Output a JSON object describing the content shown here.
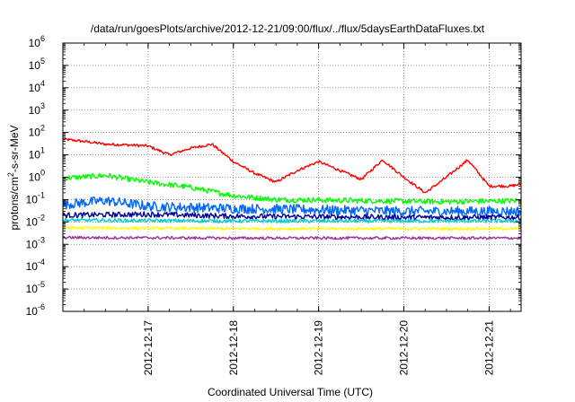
{
  "chart_data": {
    "type": "line",
    "title": "/data/run/goesPlots/archive/2012-12-21/09:00/flux/../flux/5daysEarthDataFluxes.txt",
    "xlabel": "Coordinated Universal Time (UTC)",
    "ylabel_base": "protons/cm",
    "ylabel_sup": "2",
    "ylabel_rest": "-s-sr-MeV",
    "yscale": "log",
    "ylim_exp": [
      -6,
      6
    ],
    "y_ticks": [
      {
        "base": "10",
        "exp": "6",
        "value_exp": 6
      },
      {
        "base": "10",
        "exp": "5",
        "value_exp": 5
      },
      {
        "base": "10",
        "exp": "4",
        "value_exp": 4
      },
      {
        "base": "10",
        "exp": "3",
        "value_exp": 3
      },
      {
        "base": "10",
        "exp": "2",
        "value_exp": 2
      },
      {
        "base": "10",
        "exp": "1",
        "value_exp": 1
      },
      {
        "base": "10",
        "exp": "0",
        "value_exp": 0
      },
      {
        "base": "10",
        "exp": "-1",
        "value_exp": -1
      },
      {
        "base": "10",
        "exp": "-2",
        "value_exp": -2
      },
      {
        "base": "10",
        "exp": "-3",
        "value_exp": -3
      },
      {
        "base": "10",
        "exp": "-4",
        "value_exp": -4
      },
      {
        "base": "10",
        "exp": "-5",
        "value_exp": -5
      },
      {
        "base": "10",
        "exp": "-6",
        "value_exp": -6
      }
    ],
    "xlim_days": [
      "2012-12-16 00:00",
      "2012-12-21 09:00"
    ],
    "x_ticks": [
      "2012-12-17",
      "2012-12-18",
      "2012-12-19",
      "2012-12-20",
      "2012-12-21"
    ],
    "grid": "dotted major",
    "series": [
      {
        "color": "#ff0000",
        "noise": 0.06,
        "points": [
          [
            "2012-12-16 00:00",
            50
          ],
          [
            "2012-12-16 06:00",
            40
          ],
          [
            "2012-12-16 12:00",
            30
          ],
          [
            "2012-12-16 18:00",
            28
          ],
          [
            "2012-12-17 00:00",
            25
          ],
          [
            "2012-12-17 06:00",
            10
          ],
          [
            "2012-12-17 12:00",
            20
          ],
          [
            "2012-12-17 18:00",
            30
          ],
          [
            "2012-12-18 00:00",
            5
          ],
          [
            "2012-12-18 06:00",
            1.5
          ],
          [
            "2012-12-18 12:00",
            0.6
          ],
          [
            "2012-12-18 18:00",
            2
          ],
          [
            "2012-12-19 00:00",
            5
          ],
          [
            "2012-12-19 06:00",
            2
          ],
          [
            "2012-12-19 12:00",
            0.8
          ],
          [
            "2012-12-19 18:00",
            6
          ],
          [
            "2012-12-20 00:00",
            1
          ],
          [
            "2012-12-20 06:00",
            0.2
          ],
          [
            "2012-12-20 12:00",
            1
          ],
          [
            "2012-12-20 18:00",
            6
          ],
          [
            "2012-12-21 00:00",
            0.4
          ],
          [
            "2012-12-21 06:00",
            0.4
          ],
          [
            "2012-12-21 09:00",
            0.5
          ]
        ]
      },
      {
        "color": "#00ff00",
        "noise": 0.12,
        "points": [
          [
            "2012-12-16 00:00",
            0.9
          ],
          [
            "2012-12-16 12:00",
            1.2
          ],
          [
            "2012-12-17 00:00",
            0.6
          ],
          [
            "2012-12-17 12:00",
            0.35
          ],
          [
            "2012-12-18 00:00",
            0.15
          ],
          [
            "2012-12-18 12:00",
            0.1
          ],
          [
            "2012-12-19 12:00",
            0.09
          ],
          [
            "2012-12-20 12:00",
            0.08
          ],
          [
            "2012-12-21 09:00",
            0.09
          ]
        ]
      },
      {
        "color": "#0066ff",
        "noise": 0.22,
        "points": [
          [
            "2012-12-16 00:00",
            0.06
          ],
          [
            "2012-12-16 12:00",
            0.09
          ],
          [
            "2012-12-17 00:00",
            0.05
          ],
          [
            "2012-12-18 00:00",
            0.04
          ],
          [
            "2012-12-19 00:00",
            0.035
          ],
          [
            "2012-12-20 00:00",
            0.03
          ],
          [
            "2012-12-21 09:00",
            0.03
          ]
        ]
      },
      {
        "color": "#000099",
        "noise": 0.12,
        "points": [
          [
            "2012-12-16 00:00",
            0.02
          ],
          [
            "2012-12-17 00:00",
            0.022
          ],
          [
            "2012-12-18 00:00",
            0.018
          ],
          [
            "2012-12-19 00:00",
            0.017
          ],
          [
            "2012-12-20 00:00",
            0.016
          ],
          [
            "2012-12-21 09:00",
            0.016
          ]
        ]
      },
      {
        "color": "#00cccc",
        "noise": 0.08,
        "points": [
          [
            "2012-12-16 00:00",
            0.012
          ],
          [
            "2012-12-18 00:00",
            0.011
          ],
          [
            "2012-12-21 09:00",
            0.011
          ]
        ]
      },
      {
        "color": "#ffff00",
        "noise": 0.06,
        "points": [
          [
            "2012-12-16 00:00",
            0.0055
          ],
          [
            "2012-12-18 00:00",
            0.005
          ],
          [
            "2012-12-21 09:00",
            0.005
          ]
        ]
      },
      {
        "color": "#993399",
        "noise": 0.06,
        "points": [
          [
            "2012-12-16 00:00",
            0.002
          ],
          [
            "2012-12-18 00:00",
            0.0019
          ],
          [
            "2012-12-21 09:00",
            0.0019
          ]
        ]
      }
    ]
  }
}
